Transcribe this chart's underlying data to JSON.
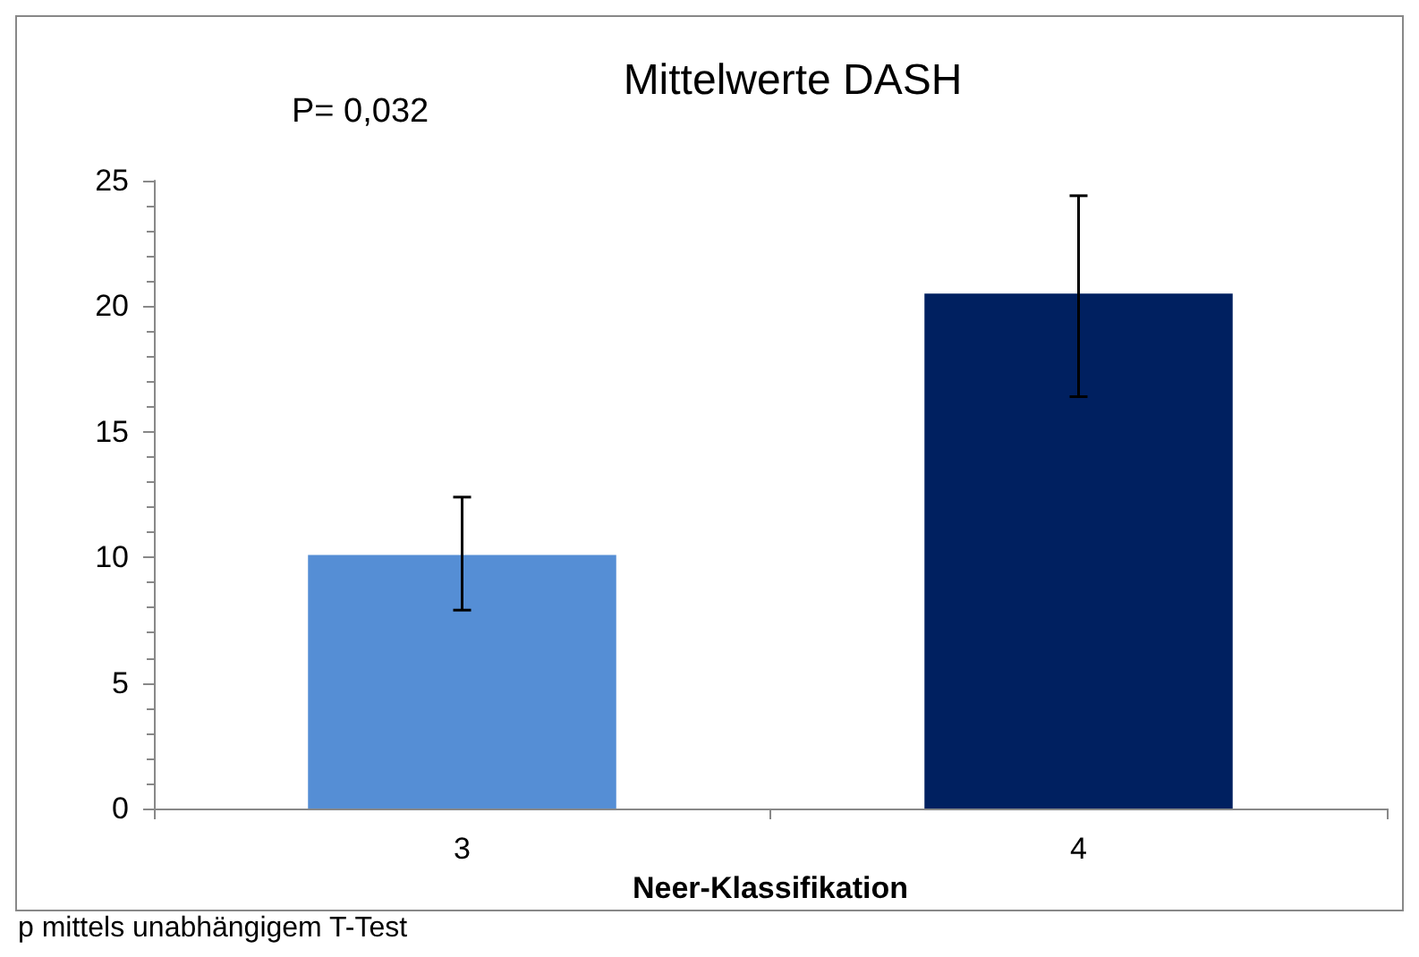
{
  "chart_data": {
    "type": "bar",
    "title": "Mittelwerte DASH",
    "xlabel": "Neer-Klassifikation",
    "categories": [
      "3",
      "4"
    ],
    "values": [
      10.1,
      20.5
    ],
    "colors": [
      "#558ed5",
      "#002060"
    ],
    "errors": [
      [
        7.9,
        12.4
      ],
      [
        16.4,
        24.4
      ]
    ],
    "ylim": [
      0,
      25
    ],
    "yticks": [
      0,
      5,
      10,
      15,
      20,
      25
    ],
    "grid": false,
    "annotations": [
      "P= 0,032",
      "p mittels unabhängigem T-Test"
    ]
  }
}
